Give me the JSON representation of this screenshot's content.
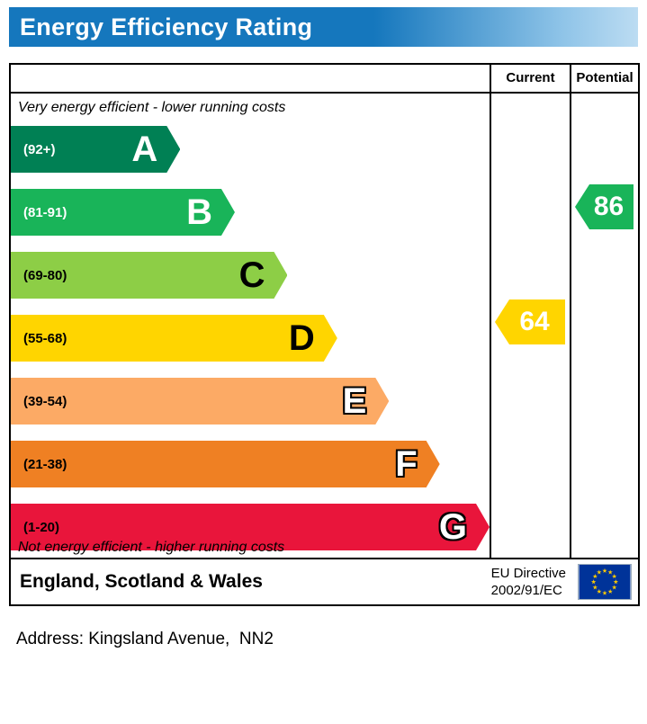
{
  "title": "Energy Efficiency Rating",
  "columns": {
    "current": "Current",
    "potential": "Potential"
  },
  "top_note": "Very energy efficient - lower running costs",
  "bottom_note": "Not energy efficient - higher running costs",
  "bands": [
    {
      "letter": "A",
      "range": "(92+)",
      "color": "#008054",
      "width_pct": 35.4,
      "text_style": "light"
    },
    {
      "letter": "B",
      "range": "(81-91)",
      "color": "#19b459",
      "width_pct": 46.8,
      "text_style": "light"
    },
    {
      "letter": "C",
      "range": "(69-80)",
      "color": "#8dce46",
      "width_pct": 57.8,
      "text_style": "dark"
    },
    {
      "letter": "D",
      "range": "(55-68)",
      "color": "#ffd500",
      "width_pct": 68.2,
      "text_style": "dark"
    },
    {
      "letter": "E",
      "range": "(39-54)",
      "color": "#fcaa65",
      "width_pct": 79.0,
      "text_style": "outline"
    },
    {
      "letter": "F",
      "range": "(21-38)",
      "color": "#ef8023",
      "width_pct": 89.6,
      "text_style": "outline"
    },
    {
      "letter": "G",
      "range": "(1-20)",
      "color": "#e9153b",
      "width_pct": 100,
      "text_style": "outline"
    }
  ],
  "current": {
    "value": "64",
    "color": "#ffd500",
    "band": "D"
  },
  "potential": {
    "value": "86",
    "color": "#19b459",
    "band": "B"
  },
  "footer": {
    "region": "England, Scotland & Wales",
    "directive_line1": "EU Directive",
    "directive_line2": "2002/91/EC",
    "flag_blue": "#003399",
    "flag_star": "#ffcc00"
  },
  "address_line": "Address: Kingsland Avenue,  NN2",
  "chart_data": {
    "type": "bar",
    "title": "Energy Efficiency Rating",
    "bands": [
      {
        "letter": "A",
        "range_label": "(92+)",
        "min": 92,
        "max": 100
      },
      {
        "letter": "B",
        "range_label": "(81-91)",
        "min": 81,
        "max": 91
      },
      {
        "letter": "C",
        "range_label": "(69-80)",
        "min": 69,
        "max": 80
      },
      {
        "letter": "D",
        "range_label": "(55-68)",
        "min": 55,
        "max": 68
      },
      {
        "letter": "E",
        "range_label": "(39-54)",
        "min": 39,
        "max": 54
      },
      {
        "letter": "F",
        "range_label": "(21-38)",
        "min": 21,
        "max": 38
      },
      {
        "letter": "G",
        "range_label": "(1-20)",
        "min": 1,
        "max": 20
      }
    ],
    "ratings": [
      {
        "name": "Current",
        "value": 64,
        "band": "D"
      },
      {
        "name": "Potential",
        "value": 86,
        "band": "B"
      }
    ],
    "annotations": [
      "Very energy efficient - lower running costs",
      "Not energy efficient - higher running costs"
    ],
    "region_label": "England, Scotland & Wales",
    "directive_label": "EU Directive 2002/91/EC"
  }
}
